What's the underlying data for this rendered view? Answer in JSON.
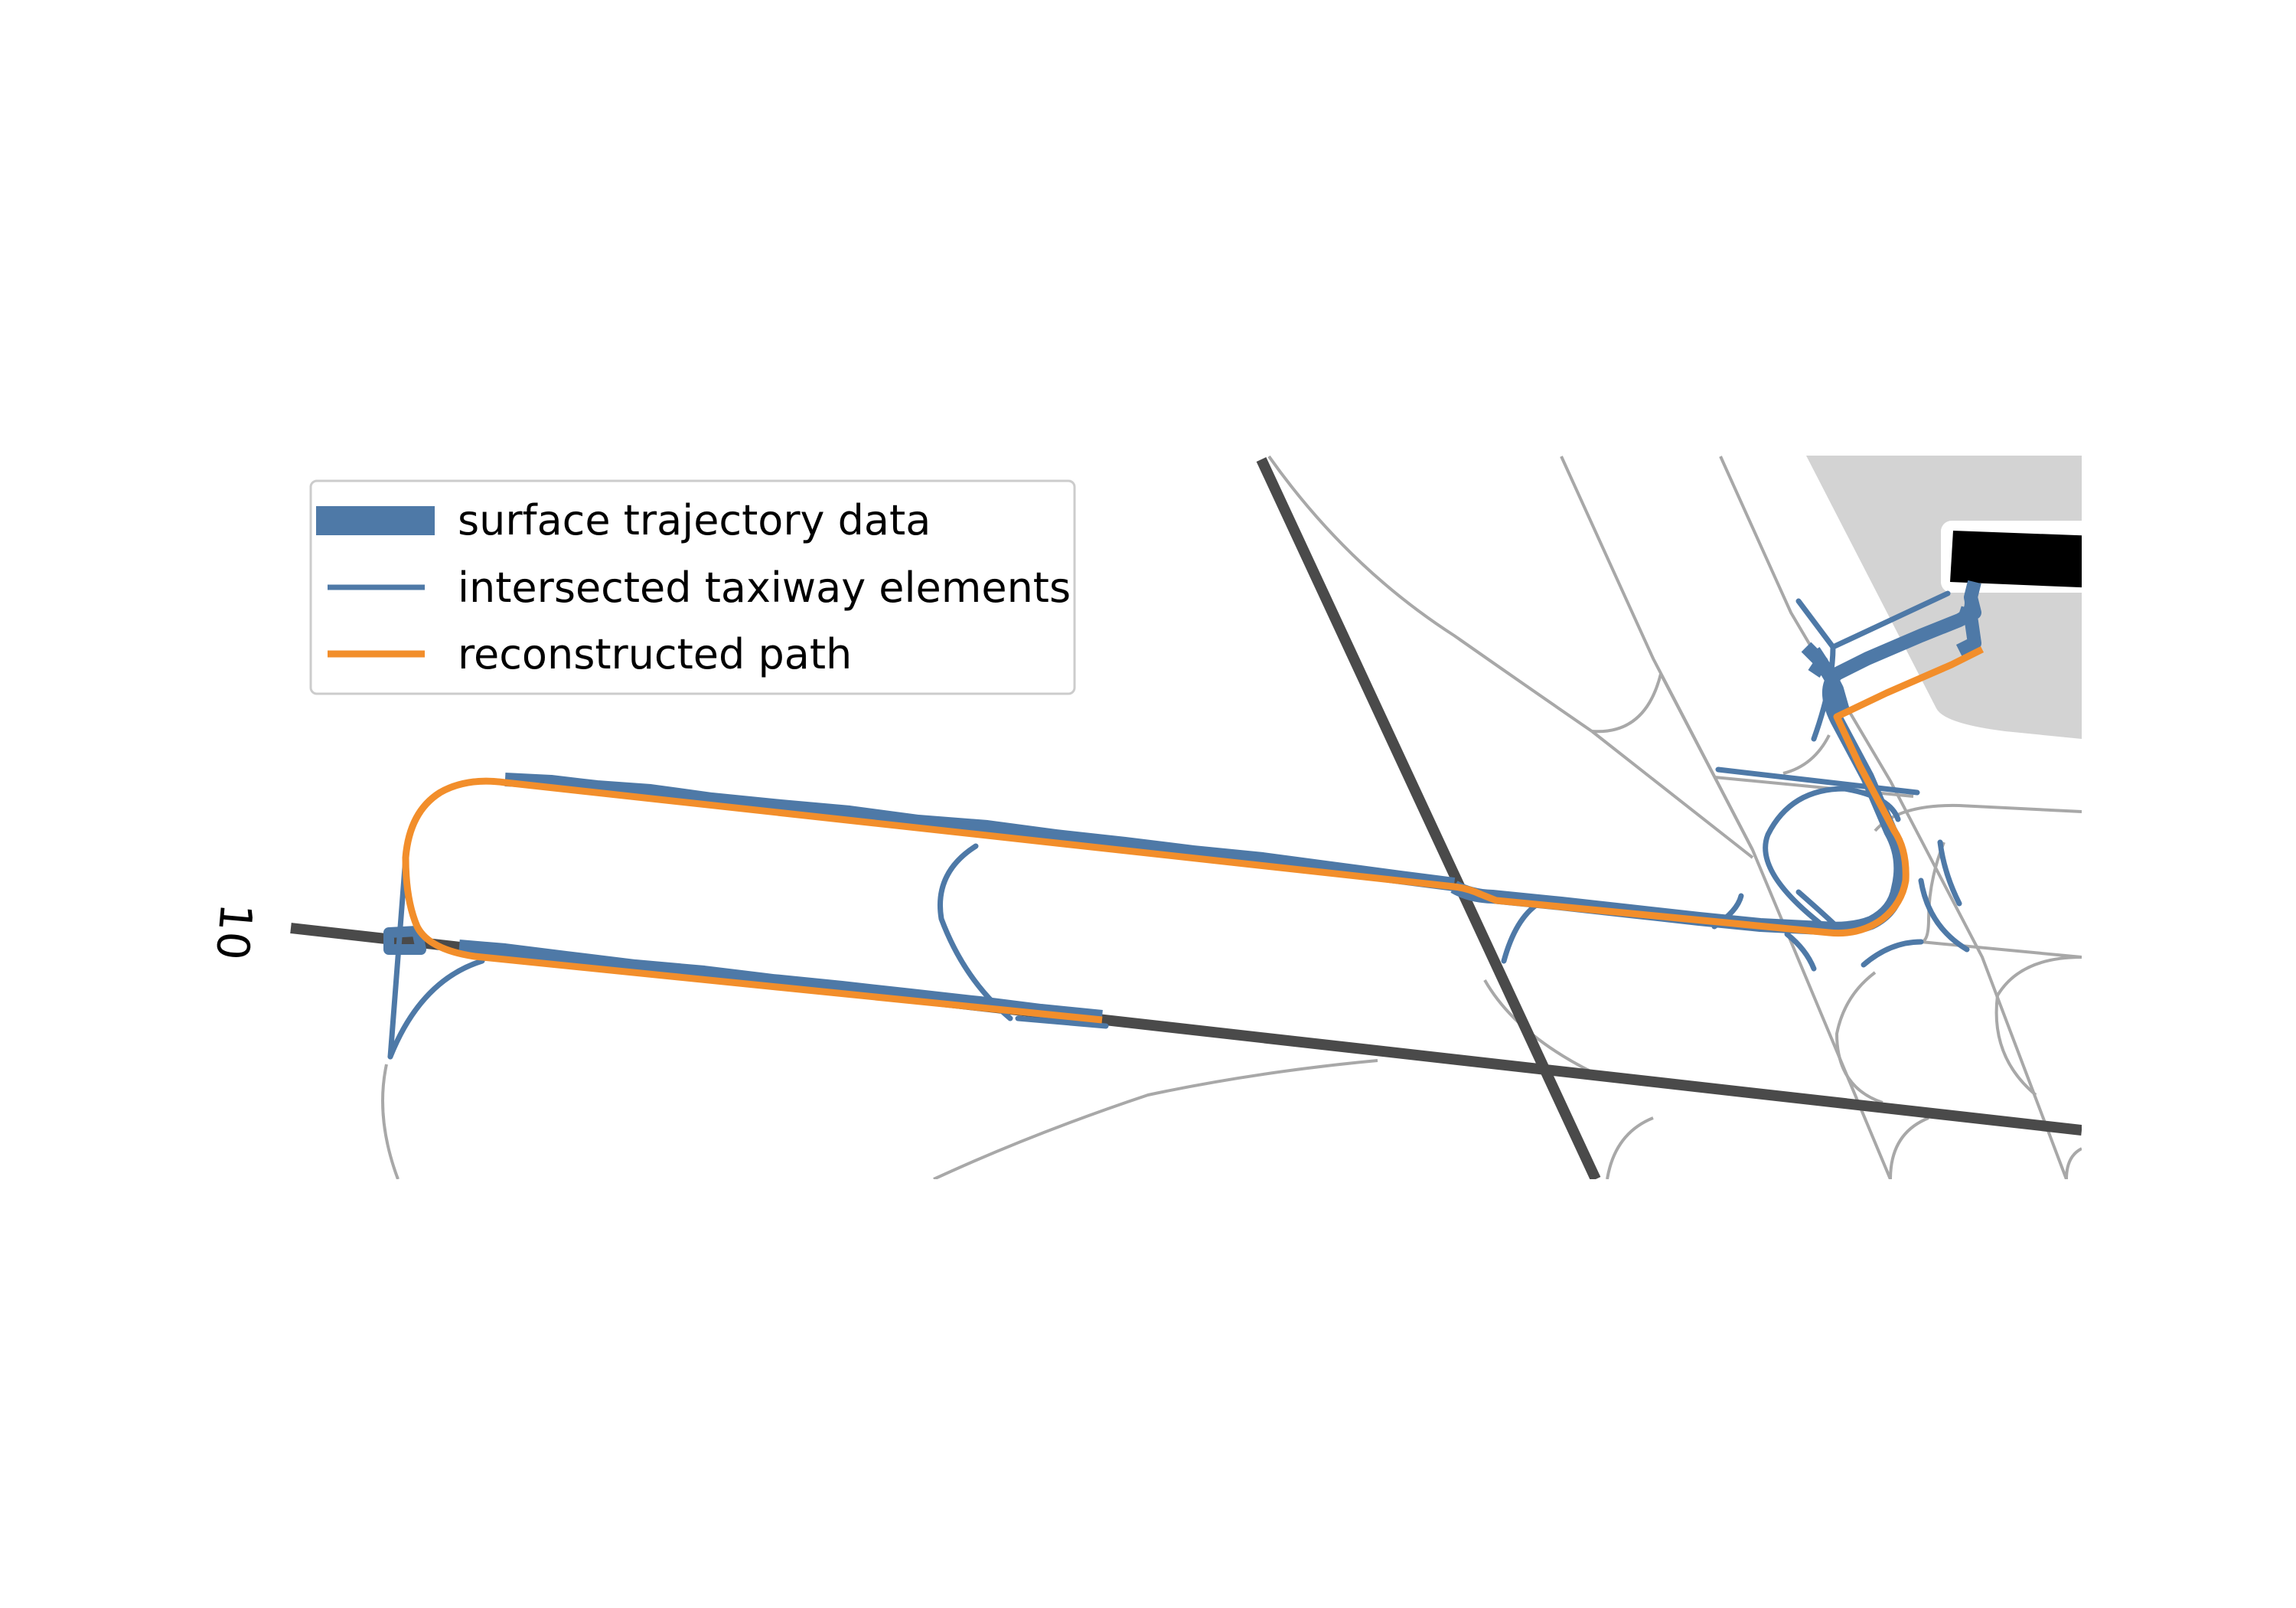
{
  "figure": {
    "runway_label": "10",
    "legend": {
      "trajectory_label": "surface trajectory data",
      "taxiway_label": "intersected taxiway elements",
      "path_label": "reconstructed path"
    }
  },
  "colors": {
    "trajectory": "#4e79a7",
    "taxiway_intersected": "#4e79a7",
    "reconstructed_path": "#f28e2b",
    "runway": "#4a4a4a",
    "taxiway_network": "#a8a8a8",
    "apron": "#d3d3d3",
    "building": "#000000"
  }
}
